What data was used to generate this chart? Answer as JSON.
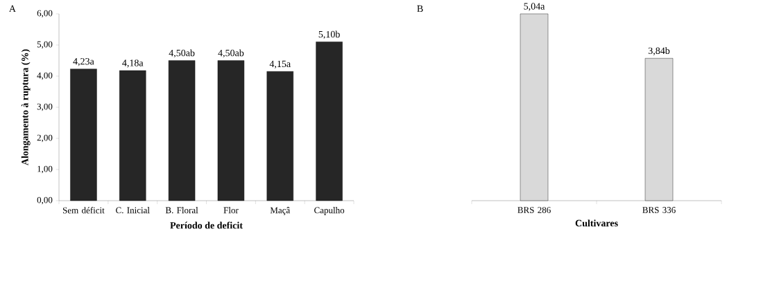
{
  "chart_data": [
    {
      "type": "bar",
      "annotations": [
        "A"
      ],
      "xlabel": "Período de deficit",
      "ylabel": "Alongamento à ruptura (%)",
      "categories": [
        "Sem déficit",
        "C. Inicial",
        "B. Floral",
        "Flor",
        "Maçâ",
        "Capulho"
      ],
      "values": [
        4.23,
        4.18,
        4.5,
        4.5,
        4.15,
        5.1
      ],
      "value_labels": [
        "4,23a",
        "4,18a",
        "4,50ab",
        "4,50ab",
        "4,15a",
        "5,10b"
      ],
      "color": "#262626",
      "ylim": [
        0,
        6
      ],
      "yticks": [
        {
          "value": 0,
          "label": "0,00"
        },
        {
          "value": 1,
          "label": "1,00"
        },
        {
          "value": 2,
          "label": "2,00"
        },
        {
          "value": 3,
          "label": "3,00"
        },
        {
          "value": 4,
          "label": "4,00"
        },
        {
          "value": 5,
          "label": "5,00"
        },
        {
          "value": 6,
          "label": "6,00"
        }
      ]
    },
    {
      "type": "bar",
      "annotations": [
        "B"
      ],
      "xlabel": "Cultivares",
      "categories": [
        "BRS 286",
        "BRS 336"
      ],
      "values": [
        5.04,
        3.84
      ],
      "value_labels": [
        "5,04a",
        "3,84b"
      ],
      "color": "#d9d9d9"
    }
  ]
}
